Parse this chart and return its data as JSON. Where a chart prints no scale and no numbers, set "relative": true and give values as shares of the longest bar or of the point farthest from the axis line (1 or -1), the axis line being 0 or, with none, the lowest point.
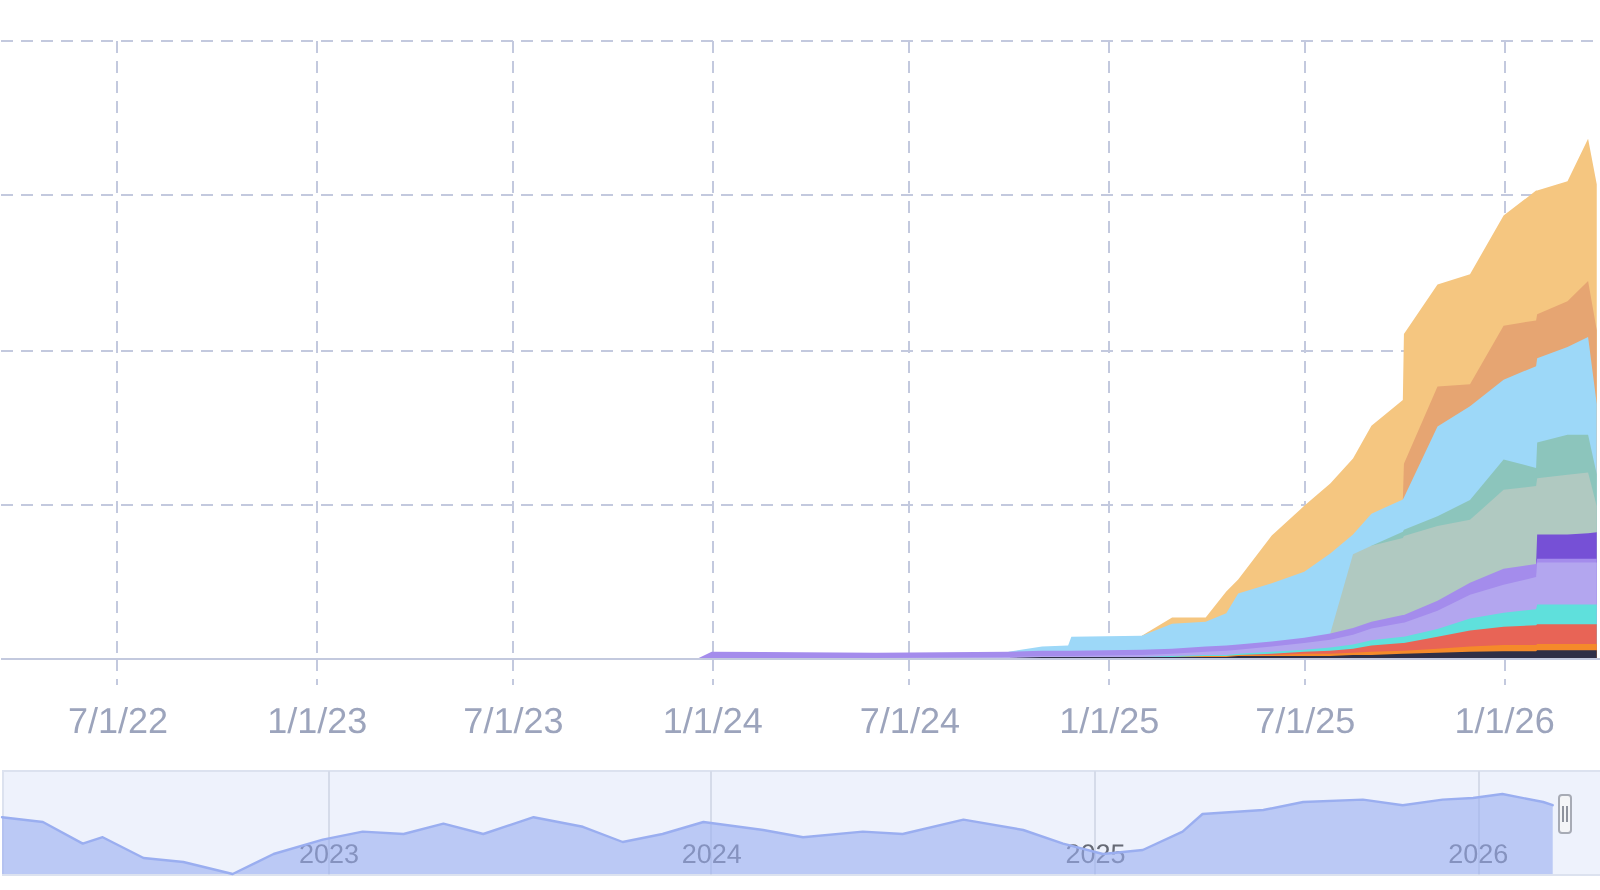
{
  "chart_data": [
    {
      "type": "area",
      "relative": true,
      "grid": true,
      "x": [
        "2022-03-15",
        "2023-12-20",
        "2024-01-01",
        "2024-06-01",
        "2024-10-01",
        "2024-11-01",
        "2024-11-25",
        "2024-11-28",
        "2025-02-01",
        "2025-03-01",
        "2025-04-01",
        "2025-04-20",
        "2025-05-01",
        "2025-06-01",
        "2025-07-01",
        "2025-07-25",
        "2025-08-15",
        "2025-09-01",
        "2025-09-30",
        "2025-10-01",
        "2025-11-01",
        "2025-12-01",
        "2026-01-01",
        "2026-01-31",
        "2026-02-01",
        "2026-03-01",
        "2026-03-20",
        "2026-03-28"
      ],
      "xlim": [
        "2022-03-15",
        "2026-03-31"
      ],
      "xticks": [
        {
          "value": "2022-07-01",
          "label": "7/1/22"
        },
        {
          "value": "2023-01-01",
          "label": "1/1/23"
        },
        {
          "value": "2023-07-01",
          "label": "7/1/23"
        },
        {
          "value": "2024-01-01",
          "label": "1/1/24"
        },
        {
          "value": "2024-07-01",
          "label": "7/1/24"
        },
        {
          "value": "2025-01-01",
          "label": "1/1/25"
        },
        {
          "value": "2025-07-01",
          "label": "7/1/25"
        },
        {
          "value": "2026-01-01",
          "label": "1/1/26"
        }
      ],
      "series": [
        {
          "color": "#f5c680",
          "values": [
            null,
            null,
            null,
            null,
            null,
            null,
            null,
            null,
            0.043,
            0.078,
            0.078,
            0.128,
            0.151,
            0.236,
            0.293,
            0.336,
            0.384,
            0.447,
            0.497,
            0.624,
            0.719,
            0.739,
            0.852,
            0.9,
            0.9,
            0.918,
            1,
            0.912
          ]
        },
        {
          "color": "#e6a572",
          "values": [
            null,
            null,
            null,
            null,
            null,
            null,
            null,
            null,
            null,
            null,
            null,
            null,
            null,
            null,
            null,
            null,
            null,
            null,
            0.305,
            0.374,
            0.523,
            0.527,
            0.64,
            0.65,
            0.662,
            0.687,
            0.726,
            0.631
          ]
        },
        {
          "color": "#9dd8f8",
          "values": [
            null,
            null,
            null,
            null,
            0.012,
            0.022,
            0.024,
            0.041,
            0.043,
            0.066,
            0.07,
            0.086,
            0.124,
            0.144,
            0.166,
            0.201,
            0.238,
            0.278,
            0.305,
            0.309,
            0.446,
            0.485,
            0.536,
            0.562,
            0.577,
            0.599,
            0.618,
            0.489
          ]
        },
        {
          "color": "#8cc5bc",
          "values": [
            null,
            null,
            null,
            null,
            null,
            null,
            null,
            null,
            null,
            null,
            null,
            null,
            null,
            null,
            null,
            null,
            null,
            0.216,
            0.243,
            0.247,
            0.273,
            0.304,
            0.382,
            0.366,
            0.415,
            0.43,
            0.43,
            0.354
          ]
        },
        {
          "color": "#b0c9c1",
          "values": [
            null,
            null,
            null,
            null,
            null,
            null,
            null,
            null,
            null,
            null,
            null,
            null,
            null,
            null,
            null,
            0.047,
            0.2,
            0.216,
            0.231,
            0.235,
            0.254,
            0.266,
            0.324,
            0.331,
            0.346,
            0.353,
            0.357,
            0.292
          ]
        },
        {
          "color": "#7650d6",
          "values": [
            null,
            null,
            null,
            null,
            null,
            null,
            null,
            null,
            null,
            null,
            null,
            null,
            null,
            null,
            null,
            null,
            null,
            null,
            null,
            null,
            null,
            null,
            null,
            0.181,
            0.238,
            0.238,
            0.24,
            0.242
          ]
        },
        {
          "color": "#a48cec",
          "values": [
            null,
            0,
            0.012,
            0.01,
            0.012,
            0.014,
            0.014,
            0.014,
            0.016,
            0.018,
            0.022,
            0.024,
            0.026,
            0.032,
            0.039,
            0.047,
            0.058,
            0.07,
            0.083,
            0.083,
            0.11,
            0.145,
            0.172,
            0.181,
            0.191,
            0.191,
            0.191,
            0.191
          ]
        },
        {
          "color": "#b3a6ef",
          "values": [
            null,
            null,
            null,
            0,
            0.002,
            0.004,
            0.004,
            0.004,
            0.006,
            0.008,
            0.012,
            0.014,
            0.016,
            0.022,
            0.029,
            0.035,
            0.045,
            0.057,
            0.068,
            0.068,
            0.091,
            0.122,
            0.141,
            0.156,
            0.184,
            0.184,
            0.184,
            0.184
          ]
        },
        {
          "color": "#5fe0dc",
          "values": [
            null,
            null,
            null,
            null,
            null,
            null,
            null,
            null,
            0.002,
            0.004,
            0.006,
            0.006,
            0.008,
            0.012,
            0.016,
            0.02,
            0.026,
            0.034,
            0.041,
            0.041,
            0.056,
            0.076,
            0.087,
            0.094,
            0.103,
            0.103,
            0.103,
            0.103
          ]
        },
        {
          "color": "#e86456",
          "values": [
            null,
            null,
            null,
            null,
            null,
            null,
            null,
            null,
            null,
            null,
            null,
            null,
            0.006,
            0.008,
            0.012,
            0.014,
            0.018,
            0.024,
            0.029,
            0.029,
            0.041,
            0.053,
            0.06,
            0.063,
            0.065,
            0.065,
            0.065,
            0.065
          ]
        },
        {
          "color": "#f58a2a",
          "values": [
            null,
            null,
            null,
            null,
            null,
            null,
            null,
            null,
            null,
            0.002,
            0.004,
            0.004,
            0.006,
            0.006,
            0.008,
            0.008,
            0.01,
            0.012,
            0.014,
            0.014,
            0.018,
            0.022,
            0.025,
            0.025,
            0.027,
            0.027,
            0.027,
            0.027
          ]
        },
        {
          "color": "#2f2f47",
          "values": [
            0,
            0,
            0,
            0,
            0,
            0.002,
            0.002,
            0.002,
            0.002,
            0.002,
            0.002,
            0.002,
            0.004,
            0.004,
            0.004,
            0.004,
            0.006,
            0.006,
            0.008,
            0.008,
            0.01,
            0.012,
            0.013,
            0.013,
            0.015,
            0.015,
            0.015,
            0.015
          ]
        }
      ]
    },
    {
      "type": "area",
      "relative": true,
      "grid": "x",
      "x": [
        "2022-02-24",
        "2022-04-04",
        "2022-05-12",
        "2022-05-31",
        "2022-07-09",
        "2022-08-16",
        "2022-10-02",
        "2022-11-10",
        "2022-12-27",
        "2023-02-03",
        "2023-03-14",
        "2023-04-21",
        "2023-05-29",
        "2023-07-16",
        "2023-09-01",
        "2023-10-09",
        "2023-11-16",
        "2023-12-25",
        "2024-02-20",
        "2024-03-29",
        "2024-05-25",
        "2024-07-02",
        "2024-08-29",
        "2024-10-25",
        "2024-12-02",
        "2025-01-09",
        "2025-02-16",
        "2025-03-26",
        "2025-04-14",
        "2025-06-11",
        "2025-07-19",
        "2025-09-14",
        "2025-10-22",
        "2025-11-29",
        "2025-12-28",
        "2026-01-25",
        "2026-03-05",
        "2026-03-14"
      ],
      "xlim": [
        "2022-02-24",
        "2026-04-30"
      ],
      "xticks": [
        {
          "value": "2023-01-01",
          "label": "2023"
        },
        {
          "value": "2024-01-01",
          "label": "2024"
        },
        {
          "value": "2025-01-01",
          "label": "2025"
        },
        {
          "value": "2026-01-01",
          "label": "2026"
        }
      ],
      "series": [
        {
          "color": "#9aaef0",
          "values": [
            0.71,
            0.65,
            0.38,
            0.46,
            0.2,
            0.15,
            0,
            0.25,
            0.43,
            0.53,
            0.5,
            0.63,
            0.5,
            0.71,
            0.59,
            0.4,
            0.5,
            0.65,
            0.55,
            0.46,
            0.53,
            0.5,
            0.68,
            0.55,
            0.38,
            0.25,
            0.3,
            0.53,
            0.75,
            0.8,
            0.9,
            0.93,
            0.86,
            0.93,
            0.95,
            1,
            0.9,
            0.86
          ]
        }
      ]
    }
  ]
}
